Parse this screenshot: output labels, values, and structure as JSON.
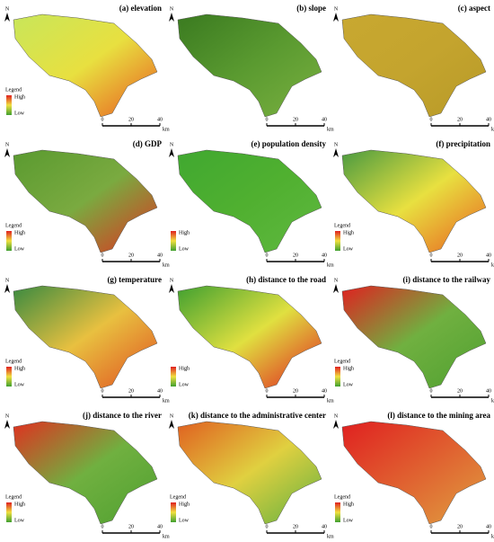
{
  "panels": [
    {
      "title": "(a) elevation",
      "north": "N",
      "legend": {
        "title": "Legend",
        "high": "High",
        "low": "Low"
      },
      "scale": [
        0,
        20,
        40
      ],
      "unit": "km"
    },
    {
      "title": "(b) slope",
      "north": "N",
      "scale": [
        0,
        20,
        40
      ],
      "unit": "km"
    },
    {
      "title": "(c) aspect",
      "north": "N",
      "scale": [
        0,
        20,
        40
      ],
      "unit": "km"
    },
    {
      "title": "(d) GDP",
      "north": "N",
      "legend": {
        "title": "Legend",
        "high": "High",
        "low": "Low"
      },
      "scale": [
        0,
        20,
        40
      ],
      "unit": "km"
    },
    {
      "title": "(e) population density",
      "north": "N",
      "legend": {
        "high": "High",
        "low": "Low"
      },
      "scale": [
        0,
        20,
        40
      ],
      "unit": "km"
    },
    {
      "title": "(f) precipitation",
      "north": "N",
      "legend": {
        "title": "Legend",
        "high": "High",
        "low": "Low"
      },
      "scale": [
        0,
        20,
        40
      ],
      "unit": "km"
    },
    {
      "title": "(g) temperature",
      "north": "N",
      "legend": {
        "title": "Legend",
        "high": "High",
        "low": "Low"
      },
      "scale": [
        0,
        20,
        40
      ],
      "unit": "km"
    },
    {
      "title": "(h) distance to the road",
      "north": "N",
      "legend": {
        "high": "High",
        "low": "Low"
      },
      "scale": [
        0,
        20,
        40
      ],
      "unit": "km"
    },
    {
      "title": "(i) distance to the railway",
      "north": "N",
      "legend": {
        "title": "Legend",
        "high": "High",
        "low": "Low"
      },
      "scale": [
        0,
        20,
        40
      ],
      "unit": "km"
    },
    {
      "title": "(j) distance to the river",
      "north": "N",
      "legend": {
        "title": "Legend",
        "high": "High",
        "low": "Low"
      },
      "scale": [
        0,
        20,
        40
      ],
      "unit": "km"
    },
    {
      "title": "(k) distance to the administrative center",
      "north": "N",
      "legend": {
        "title": "Legend",
        "high": "High",
        "low": "Low"
      },
      "scale": [
        0,
        20,
        40
      ],
      "unit": "km"
    },
    {
      "title": "(l) distance to the mining area",
      "north": "N",
      "legend": {
        "title": "Legend",
        "high": "High",
        "low": "Low"
      },
      "scale": [
        0,
        20,
        40
      ],
      "unit": "km"
    }
  ]
}
